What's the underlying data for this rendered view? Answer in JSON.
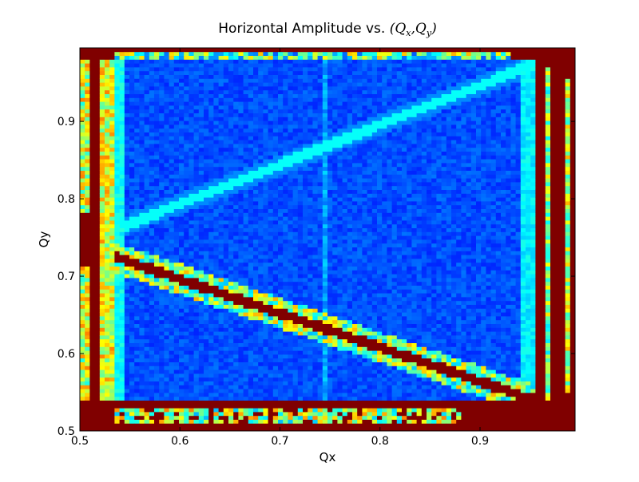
{
  "chart_data": {
    "type": "heatmap",
    "title": "Horizontal Amplitude vs. ",
    "title_math": {
      "open": "(",
      "x_symbol": "Q",
      "x_sub": "x",
      "separator": ",",
      "y_symbol": "Q",
      "y_sub": "y",
      "close": ")"
    },
    "xlabel": "Qx",
    "ylabel": "Qy",
    "xlim": [
      0.5,
      0.995
    ],
    "ylim": [
      0.5,
      0.995
    ],
    "xticks": [
      0.5,
      0.6,
      0.7,
      0.8,
      0.9
    ],
    "yticks": [
      0.5,
      0.6,
      0.7,
      0.8,
      0.9
    ],
    "xtick_labels": [
      "0.5",
      "0.6",
      "0.7",
      "0.8",
      "0.9"
    ],
    "ytick_labels": [
      "0.5",
      "0.6",
      "0.7",
      "0.8",
      "0.9"
    ],
    "colormap": "jet",
    "grid": false,
    "colors": {
      "saturated": "#800000",
      "low": "#000080",
      "frame": "#000000"
    },
    "features": {
      "stable_region": {
        "x": [
          0.535,
          0.955
        ],
        "y": [
          0.54,
          0.978
        ],
        "level": 0.16
      },
      "right_band": {
        "x": [
          0.955,
          0.995
        ],
        "level": 1.0
      },
      "bottom_band": {
        "y": [
          0.5,
          0.54
        ],
        "level": 1.0
      },
      "left_column_gap": {
        "x": [
          0.5,
          0.512
        ],
        "y": [
          0.715,
          0.78
        ],
        "level": 1.0
      },
      "coupling_resonance": {
        "from": [
          0.535,
          0.725
        ],
        "to": [
          0.955,
          0.54
        ],
        "level": 1.0
      },
      "difference_resonance": {
        "from": [
          0.535,
          0.76
        ],
        "to": [
          0.955,
          0.975
        ],
        "level": 0.38
      },
      "vertical_line_qx": 0.745
    }
  }
}
